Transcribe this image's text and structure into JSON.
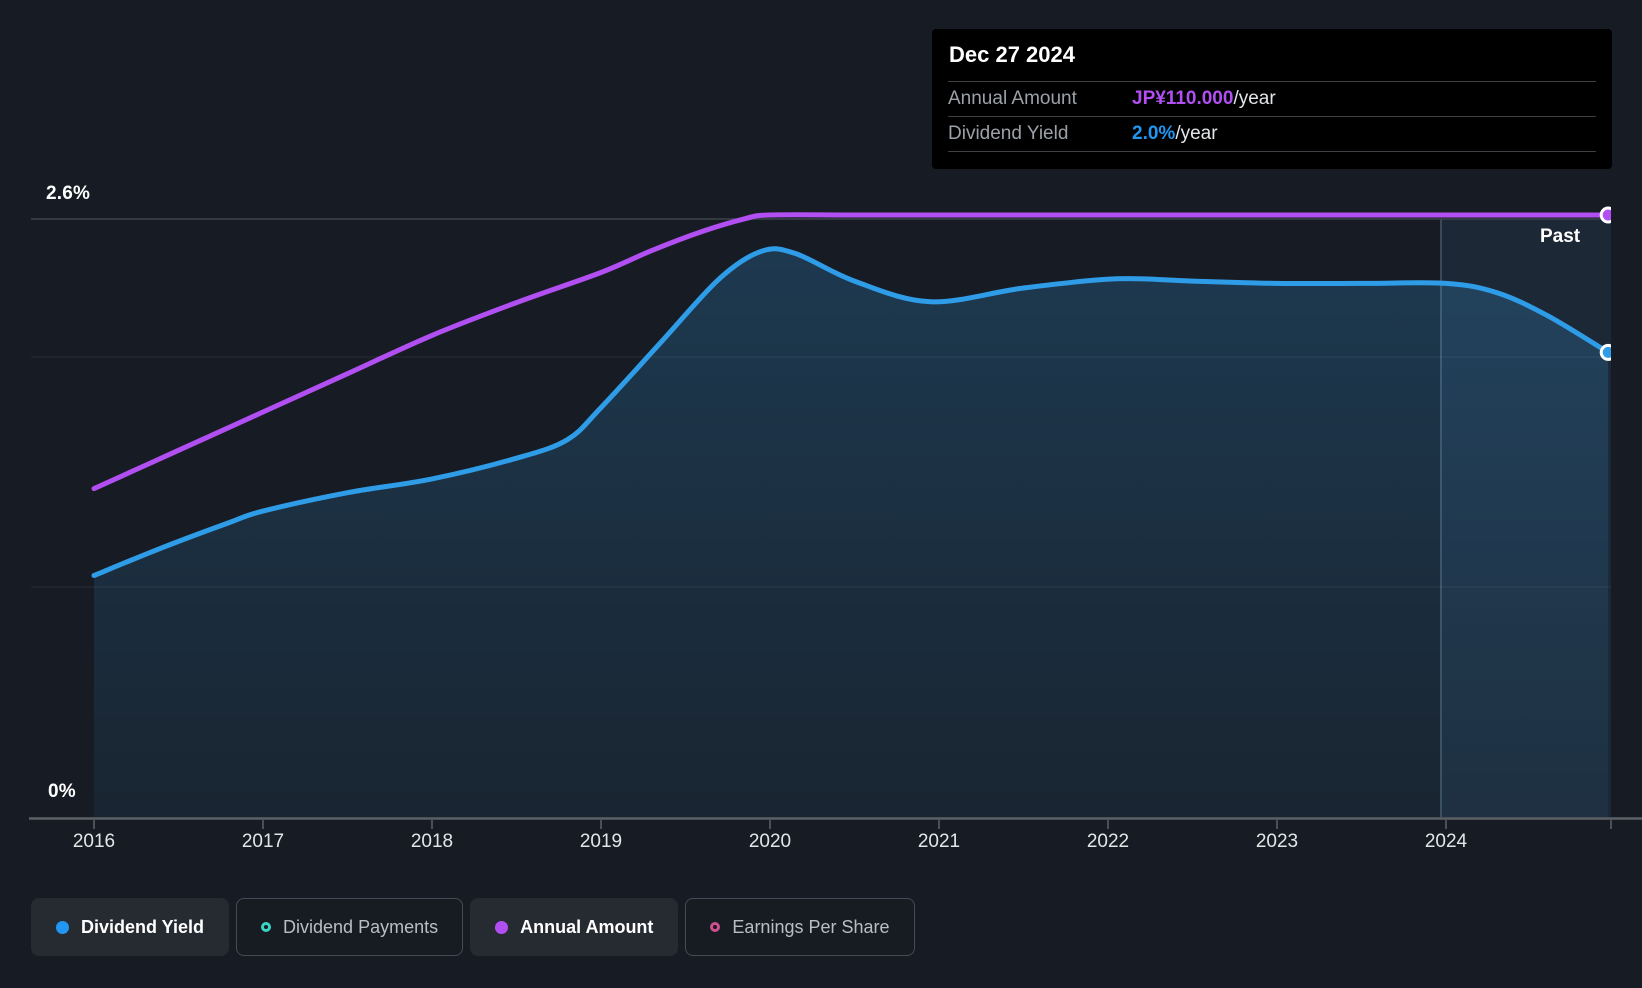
{
  "tooltip": {
    "date": "Dec 27 2024",
    "rows": [
      {
        "label": "Annual Amount",
        "value": "JP¥110.000",
        "suffix": "/year",
        "value_color": "#b14ff2"
      },
      {
        "label": "Dividend Yield",
        "value": "2.0%",
        "suffix": "/year",
        "value_color": "#2196f3"
      }
    ]
  },
  "past_label": "Past",
  "axis": {
    "y_top_label": "2.6%",
    "y_bottom_label": "0%",
    "x_labels": [
      "2016",
      "2017",
      "2018",
      "2019",
      "2020",
      "2021",
      "2022",
      "2023",
      "2024"
    ]
  },
  "legend": [
    {
      "label": "Dividend Yield",
      "color": "#2196f3",
      "marker": "filled-dot",
      "active": true
    },
    {
      "label": "Dividend Payments",
      "color": "#3bd4c5",
      "marker": "ring",
      "active": false
    },
    {
      "label": "Annual Amount",
      "color": "#b14ff2",
      "marker": "filled-dot",
      "active": true
    },
    {
      "label": "Earnings Per Share",
      "color": "#ce4f8e",
      "marker": "ring",
      "active": false
    }
  ],
  "chart_data": {
    "type": "area",
    "title": "Dividend yield and annual dividend amount history",
    "x_range": [
      2016,
      2024.96
    ],
    "x_ticks": [
      2016,
      2017,
      2018,
      2019,
      2020,
      2021,
      2022,
      2023,
      2024
    ],
    "y_axis": {
      "unit": "%",
      "min": 0,
      "max": 2.6,
      "gridlines_pct": [
        1.0,
        2.0,
        2.6
      ],
      "labeled_pct": [
        0,
        2.6
      ]
    },
    "past_divider_year": 2023.97,
    "colors": {
      "yield_line": "#2f9ce8",
      "amount_line": "#b14ff2",
      "area_fill": "rgba(47,140,205,0.24)"
    },
    "series": [
      {
        "name": "Dividend Yield",
        "unit": "percent",
        "color": "#2f9ce8",
        "area_fill": true,
        "end_value_label": "2.0%/year",
        "points": [
          [
            2016,
            1.05
          ],
          [
            2016.4,
            1.17
          ],
          [
            2016.8,
            1.28
          ],
          [
            2017,
            1.33
          ],
          [
            2017.5,
            1.41
          ],
          [
            2018,
            1.47
          ],
          [
            2018.5,
            1.56
          ],
          [
            2018.8,
            1.64
          ],
          [
            2019,
            1.78
          ],
          [
            2019.35,
            2.06
          ],
          [
            2019.7,
            2.34
          ],
          [
            2019.95,
            2.46
          ],
          [
            2020.15,
            2.45
          ],
          [
            2020.5,
            2.33
          ],
          [
            2020.95,
            2.24
          ],
          [
            2021.5,
            2.3
          ],
          [
            2022.05,
            2.34
          ],
          [
            2022.5,
            2.33
          ],
          [
            2023,
            2.32
          ],
          [
            2023.5,
            2.32
          ],
          [
            2024,
            2.32
          ],
          [
            2024.3,
            2.28
          ],
          [
            2024.6,
            2.18
          ],
          [
            2024.96,
            2.02
          ]
        ]
      },
      {
        "name": "Annual Amount",
        "unit": "jpy_per_year",
        "color": "#b14ff2",
        "max_value": 110,
        "end_value_label": "JP¥110.000/year",
        "points": [
          [
            2016,
            60
          ],
          [
            2016.5,
            67
          ],
          [
            2017,
            74
          ],
          [
            2017.5,
            81
          ],
          [
            2018,
            88
          ],
          [
            2018.5,
            94
          ],
          [
            2019,
            99.5
          ],
          [
            2019.3,
            103.5
          ],
          [
            2019.6,
            107
          ],
          [
            2019.85,
            109.3
          ],
          [
            2020,
            110
          ],
          [
            2020.5,
            110
          ],
          [
            2021,
            110
          ],
          [
            2021.5,
            110
          ],
          [
            2022,
            110
          ],
          [
            2022.5,
            110
          ],
          [
            2023,
            110
          ],
          [
            2023.5,
            110
          ],
          [
            2024,
            110
          ],
          [
            2024.5,
            110
          ],
          [
            2024.96,
            110
          ]
        ]
      }
    ]
  }
}
